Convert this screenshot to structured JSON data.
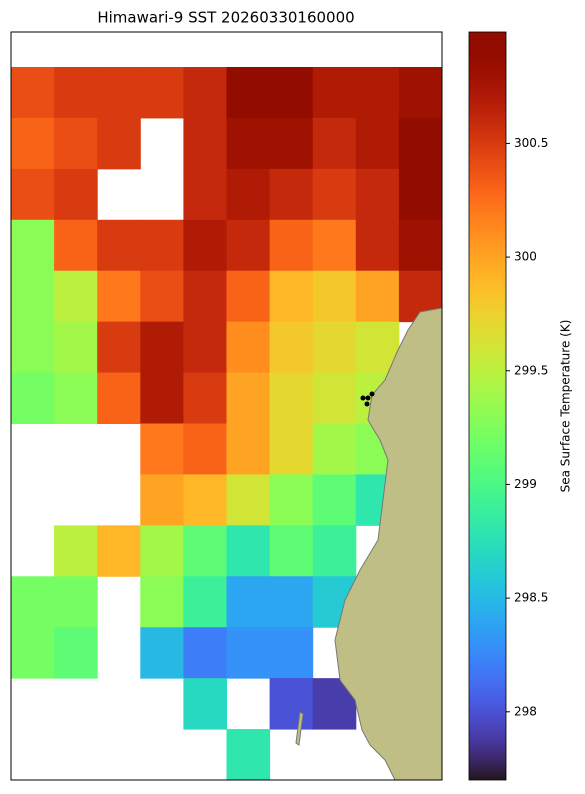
{
  "chart_data": {
    "type": "heatmap",
    "title": "Himawari-9 SST 20260330160000",
    "colorbar_label": "Sea Surface Temperature (K)",
    "colormap": "turbo",
    "clim": [
      297.7,
      300.99
    ],
    "cticks": [
      298.0,
      298.5,
      299.0,
      299.5,
      300.0,
      300.5
    ],
    "values": [
      [
        300.4,
        300.5,
        300.5,
        300.5,
        300.6,
        300.9,
        300.9,
        300.7,
        300.7,
        300.8
      ],
      [
        300.3,
        300.4,
        300.5,
        null,
        300.6,
        300.8,
        300.8,
        300.6,
        300.7,
        300.9
      ],
      [
        300.4,
        300.5,
        null,
        null,
        300.6,
        300.7,
        300.6,
        300.5,
        300.6,
        300.9
      ],
      [
        299.3,
        300.3,
        300.5,
        300.5,
        300.7,
        300.6,
        300.3,
        300.2,
        300.6,
        300.8
      ],
      [
        299.3,
        299.5,
        300.2,
        300.4,
        300.6,
        300.3,
        299.9,
        299.8,
        300.0,
        300.6
      ],
      [
        299.3,
        299.4,
        300.5,
        300.7,
        300.6,
        300.1,
        299.8,
        299.7,
        299.6,
        null
      ],
      [
        299.2,
        299.3,
        300.3,
        300.7,
        300.5,
        300.0,
        299.7,
        299.6,
        299.5,
        null
      ],
      [
        null,
        null,
        null,
        300.2,
        300.3,
        300.0,
        299.7,
        299.4,
        299.3,
        null
      ],
      [
        null,
        null,
        null,
        300.0,
        299.9,
        299.6,
        299.3,
        299.1,
        298.8,
        null
      ],
      [
        null,
        299.5,
        299.9,
        299.4,
        299.1,
        298.8,
        299.1,
        298.9,
        null,
        null
      ],
      [
        299.2,
        299.2,
        null,
        299.3,
        298.9,
        298.4,
        298.4,
        298.6,
        null,
        null
      ],
      [
        299.2,
        299.1,
        null,
        298.5,
        298.2,
        298.3,
        298.3,
        null,
        null,
        null
      ],
      [
        null,
        null,
        null,
        null,
        298.7,
        null,
        298.0,
        297.9,
        null,
        null
      ],
      [
        null,
        null,
        null,
        null,
        null,
        298.8,
        null,
        null,
        null,
        null
      ]
    ]
  }
}
